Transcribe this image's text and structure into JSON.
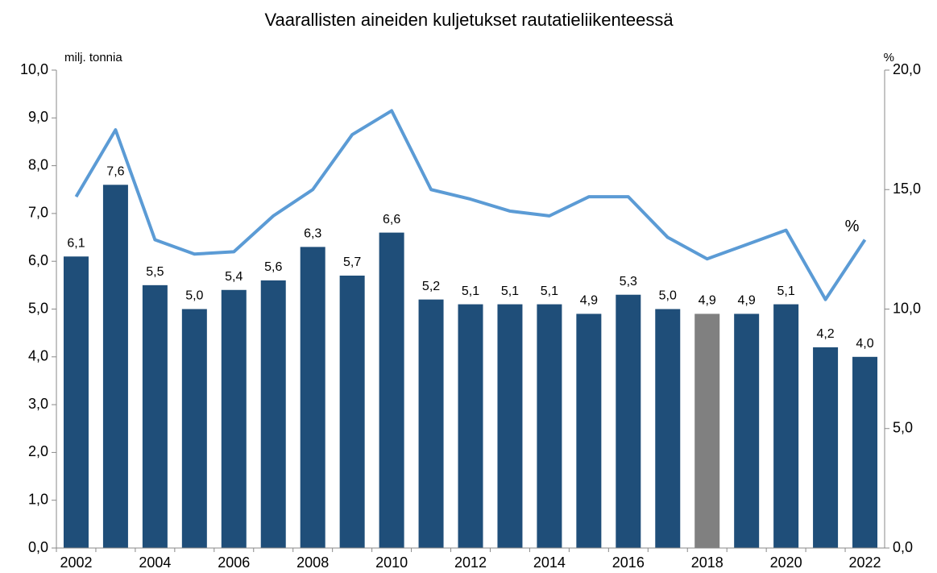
{
  "chart_data": {
    "type": "bar_line",
    "title": "Vaarallisten aineiden kuljetukset rautatieliikenteessä",
    "ylabel": "milj. tonnia",
    "y2label": "%",
    "categories": [
      "2002",
      null,
      "2004",
      null,
      "2006",
      null,
      "2008",
      null,
      "2010",
      null,
      "2012",
      null,
      "2014",
      null,
      "2016",
      null,
      "2018",
      null,
      "2020",
      null,
      "2022"
    ],
    "series": [
      {
        "type": "bar",
        "axis": "y",
        "color": "#1f4e79",
        "colors": [
          "#1f4e79",
          "#1f4e79",
          "#1f4e79",
          "#1f4e79",
          "#1f4e79",
          "#1f4e79",
          "#1f4e79",
          "#1f4e79",
          "#1f4e79",
          "#1f4e79",
          "#1f4e79",
          "#1f4e79",
          "#1f4e79",
          "#1f4e79",
          "#1f4e79",
          "#1f4e79",
          "#808080",
          "#1f4e79",
          "#1f4e79",
          "#1f4e79",
          "#1f4e79"
        ],
        "values": [
          6.1,
          7.6,
          5.5,
          5.0,
          5.4,
          5.6,
          6.3,
          5.7,
          6.6,
          5.2,
          5.1,
          5.1,
          5.1,
          4.9,
          5.3,
          5.0,
          4.9,
          4.9,
          5.1,
          4.2,
          4.0
        ],
        "value_labels": [
          "6,1",
          "7,6",
          "5,5",
          "5,0",
          "5,4",
          "5,6",
          "6,3",
          "5,7",
          "6,6",
          "5,2",
          "5,1",
          "5,1",
          "5,1",
          "4,9",
          "5,3",
          "5,0",
          "4,9",
          "4,9",
          "5,1",
          "4,2",
          "4,0"
        ]
      },
      {
        "type": "line",
        "axis": "y2",
        "name": "%",
        "color": "#5b9bd5",
        "values": [
          14.7,
          17.5,
          12.9,
          12.3,
          12.4,
          13.9,
          15.0,
          17.3,
          18.3,
          15.0,
          14.6,
          14.1,
          13.9,
          14.7,
          14.7,
          13.0,
          12.1,
          12.7,
          13.3,
          10.4,
          12.9
        ]
      }
    ],
    "ylim": [
      0,
      10
    ],
    "yticks": [
      {
        "value": 0,
        "label": "0,0"
      },
      {
        "value": 1,
        "label": "1,0"
      },
      {
        "value": 2,
        "label": "2,0"
      },
      {
        "value": 3,
        "label": "3,0"
      },
      {
        "value": 4,
        "label": "4,0"
      },
      {
        "value": 5,
        "label": "5,0"
      },
      {
        "value": 6,
        "label": "6,0"
      },
      {
        "value": 7,
        "label": "7,0"
      },
      {
        "value": 8,
        "label": "8,0"
      },
      {
        "value": 9,
        "label": "9,0"
      },
      {
        "value": 10,
        "label": "10,0"
      }
    ],
    "y2lim": [
      0,
      20
    ],
    "y2ticks": [
      {
        "value": 0,
        "label": "0,0"
      },
      {
        "value": 5,
        "label": "5,0"
      },
      {
        "value": 10,
        "label": "10,0"
      },
      {
        "value": 15,
        "label": "15,0"
      },
      {
        "value": 20,
        "label": "20,0"
      }
    ],
    "grid": false
  }
}
